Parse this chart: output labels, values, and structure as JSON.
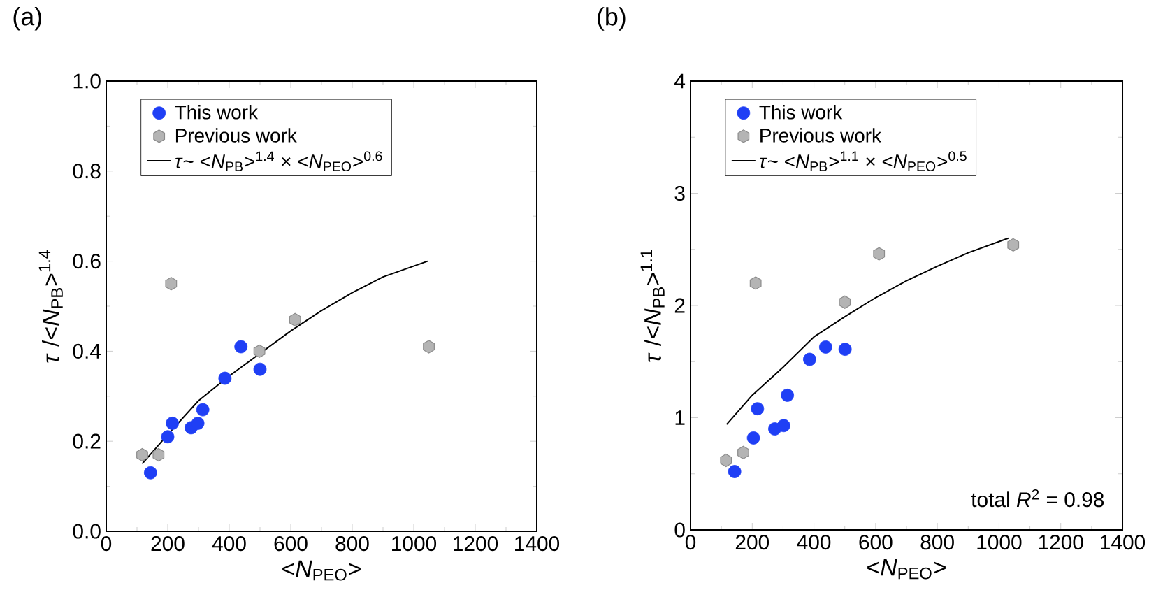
{
  "chart_data": [
    {
      "type": "scatter",
      "title": "(a)",
      "xlabel": "<*N*$_{PEO}$>",
      "ylabel": "*τ* /<*N*$_{PB}$>$^{1.4}$",
      "xlim": [
        0,
        1400
      ],
      "xticks": [
        0,
        200,
        400,
        600,
        800,
        1000,
        1200,
        1400
      ],
      "ylim": [
        0,
        1.0
      ],
      "yticks": [
        {
          "value": 0,
          "label": "0.0"
        },
        0.2,
        0.4,
        0.6,
        0.8,
        {
          "value": 1.0,
          "label": "1.0"
        }
      ],
      "legend": "top left",
      "series": [
        {
          "name": "This work",
          "color": "#1f3ff5",
          "marker": "circle",
          "x": [
            144,
            200,
            215,
            276,
            298,
            314,
            386,
            438,
            500
          ],
          "values": [
            0.13,
            0.21,
            0.24,
            0.23,
            0.24,
            0.27,
            0.34,
            0.41,
            0.36
          ]
        },
        {
          "name": "Previous work",
          "color": "#b4b4b4",
          "x": [
            117,
            170,
            211,
            498,
            614,
            1049
          ],
          "values": [
            0.17,
            0.17,
            0.55,
            0.4,
            0.47,
            0.41
          ]
        },
        {
          "name": "*τ*~ <*N*$_{PB}$>$^{1.4}$ × <*N*$_{PEO}$>$^{0.6}$",
          "type": "line",
          "color": "#000000",
          "marker": "none",
          "line_style": "solid",
          "x": [
            117,
            200,
            300,
            400,
            500,
            600,
            700,
            800,
            900,
            1045
          ],
          "values": [
            0.15,
            0.215,
            0.29,
            0.345,
            0.395,
            0.445,
            0.49,
            0.53,
            0.565,
            0.6
          ]
        }
      ]
    },
    {
      "type": "scatter",
      "title": "(b)",
      "xlabel": "<*N*$_{PEO}$>",
      "ylabel": "*τ* /<*N*$_{PB}$>$^{1.1}$",
      "xlim": [
        0,
        1400
      ],
      "xticks": [
        0,
        200,
        400,
        600,
        800,
        1000,
        1200,
        1400
      ],
      "ylim": [
        0,
        4
      ],
      "yticks": [
        0,
        1,
        2,
        3,
        4
      ],
      "legend": "top left",
      "annotations": [
        "total *R*$^{2}$ = 0.98"
      ],
      "series": [
        {
          "name": "This work",
          "color": "#1f3ff5",
          "marker": "circle",
          "x": [
            143,
            204,
            217,
            273,
            302,
            314,
            386,
            438,
            501
          ],
          "values": [
            0.52,
            0.82,
            1.08,
            0.9,
            0.93,
            1.2,
            1.52,
            1.63,
            1.61
          ]
        },
        {
          "name": "Previous work",
          "color": "#b4b4b4",
          "x": [
            115,
            171,
            211,
            500,
            611,
            1046
          ],
          "values": [
            0.62,
            0.69,
            2.2,
            2.03,
            2.46,
            2.54
          ]
        },
        {
          "name": "*τ*~ <*N*$_{PB}$>$^{1.1}$ × <*N*$_{PEO}$>$^{0.5}$",
          "type": "line",
          "color": "#000000",
          "marker": "none",
          "line_style": "solid",
          "x": [
            117,
            200,
            300,
            400,
            500,
            600,
            700,
            800,
            900,
            1030
          ],
          "values": [
            0.94,
            1.2,
            1.45,
            1.72,
            1.9,
            2.07,
            2.22,
            2.35,
            2.47,
            2.6
          ]
        }
      ]
    }
  ]
}
